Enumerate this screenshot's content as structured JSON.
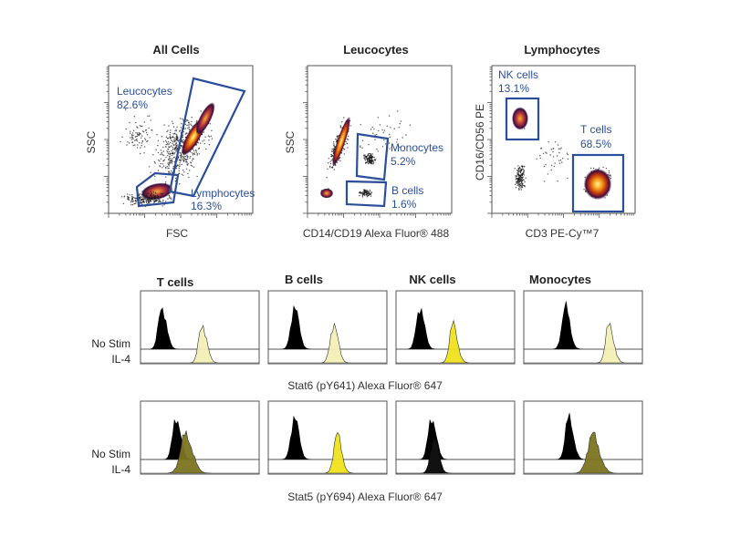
{
  "colors": {
    "gate": "#2b4e9b",
    "frame": "#555555",
    "no_stim": "#000000",
    "il4_light": "#f3efb6",
    "il4_yellow": "#f0e21c",
    "il4_olive": "#7a7420"
  },
  "chart_data": [
    {
      "type": "scatter",
      "title": "All Cells",
      "xlabel": "FSC",
      "ylabel": "SSC",
      "density": true,
      "gates": [
        {
          "name": "Leucocytes",
          "percent": "82.6%"
        },
        {
          "name": "Lymphocytes",
          "percent": "16.3%"
        }
      ]
    },
    {
      "type": "scatter",
      "title": "Leucocytes",
      "xlabel": "CD14/CD19 Alexa Fluor® 488",
      "ylabel": "SSC",
      "density": true,
      "gates": [
        {
          "name": "Monocytes",
          "percent": "5.2%"
        },
        {
          "name": "B cells",
          "percent": "1.6%"
        }
      ]
    },
    {
      "type": "scatter",
      "title": "Lymphocytes",
      "xlabel": "CD3 PE-Cy™7",
      "ylabel": "CD16/CD56 PE",
      "density": true,
      "gates": [
        {
          "name": "NK cells",
          "percent": "13.1%"
        },
        {
          "name": "T cells",
          "percent": "68.5%"
        }
      ]
    }
  ],
  "histograms": {
    "columns": [
      "T cells",
      "B cells",
      "NK cells",
      "Monocytes"
    ],
    "row_labels": [
      "No Stim",
      "IL-4"
    ],
    "rows": [
      {
        "xlabel": "Stat6 (pY641) Alexa Fluor® 647",
        "panels": [
          {
            "no_stim_peak": 0.18,
            "il4_peak": 0.52,
            "il4_color": "light"
          },
          {
            "no_stim_peak": 0.22,
            "il4_peak": 0.55,
            "il4_color": "light"
          },
          {
            "no_stim_peak": 0.2,
            "il4_peak": 0.48,
            "il4_color": "yellow"
          },
          {
            "no_stim_peak": 0.35,
            "il4_peak": 0.72,
            "il4_color": "light"
          }
        ]
      },
      {
        "xlabel": "Stat5 (pY694) Alexa Fluor® 647",
        "panels": [
          {
            "no_stim_peak": 0.3,
            "il4_peak": 0.38,
            "il4_color": "olive"
          },
          {
            "no_stim_peak": 0.22,
            "il4_peak": 0.58,
            "il4_color": "yellow"
          },
          {
            "no_stim_peak": 0.3,
            "il4_peak": 0.3,
            "il4_color": "none"
          },
          {
            "no_stim_peak": 0.38,
            "il4_peak": 0.58,
            "il4_color": "olive"
          }
        ]
      }
    ]
  }
}
